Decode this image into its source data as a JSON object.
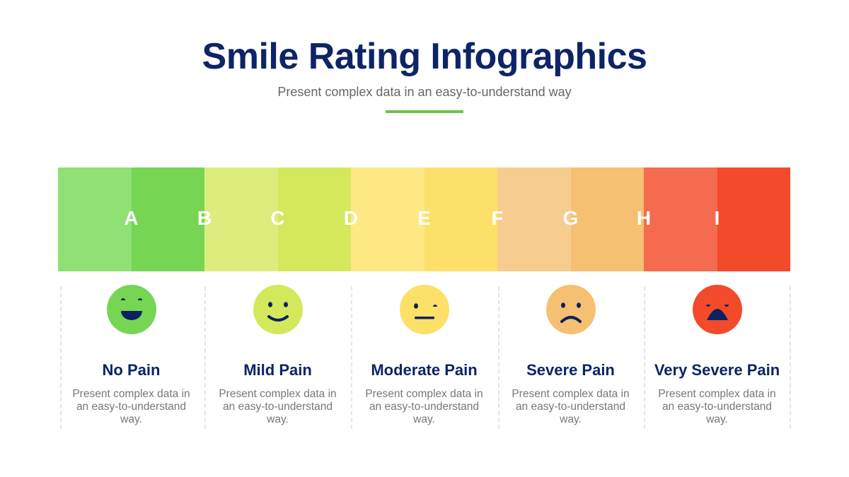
{
  "header": {
    "title": "Smile Rating Infographics",
    "subtitle": "Present complex data in an easy-to-understand way",
    "accent_color": "#6cc24a"
  },
  "scale": {
    "segment_colors": [
      "#8fe075",
      "#76d654",
      "#dded7d",
      "#d4e85c",
      "#fde884",
      "#fde068",
      "#f7cd8f",
      "#f5c071",
      "#f46b4f",
      "#f24a2a"
    ],
    "letters": [
      "A",
      "B",
      "C",
      "D",
      "E",
      "F",
      "G",
      "H",
      "I"
    ]
  },
  "levels": [
    {
      "title": "No Pain",
      "description": "Present complex data in an easy-to-understand way.",
      "face": "big-smile-icon",
      "color": "#76d654"
    },
    {
      "title": "Mild Pain",
      "description": "Present complex data in an easy-to-understand way.",
      "face": "smile-icon",
      "color": "#d4e85c"
    },
    {
      "title": "Moderate Pain",
      "description": "Present complex data in an easy-to-understand way.",
      "face": "neutral-face-icon",
      "color": "#fde068"
    },
    {
      "title": "Severe Pain",
      "description": "Present complex data in an easy-to-understand way.",
      "face": "frown-icon",
      "color": "#f5c071"
    },
    {
      "title": "Very Severe Pain",
      "description": "Present complex data in an easy-to-understand way.",
      "face": "distressed-face-icon",
      "color": "#f24a2a"
    }
  ],
  "face_feature_color": "#0b2260"
}
